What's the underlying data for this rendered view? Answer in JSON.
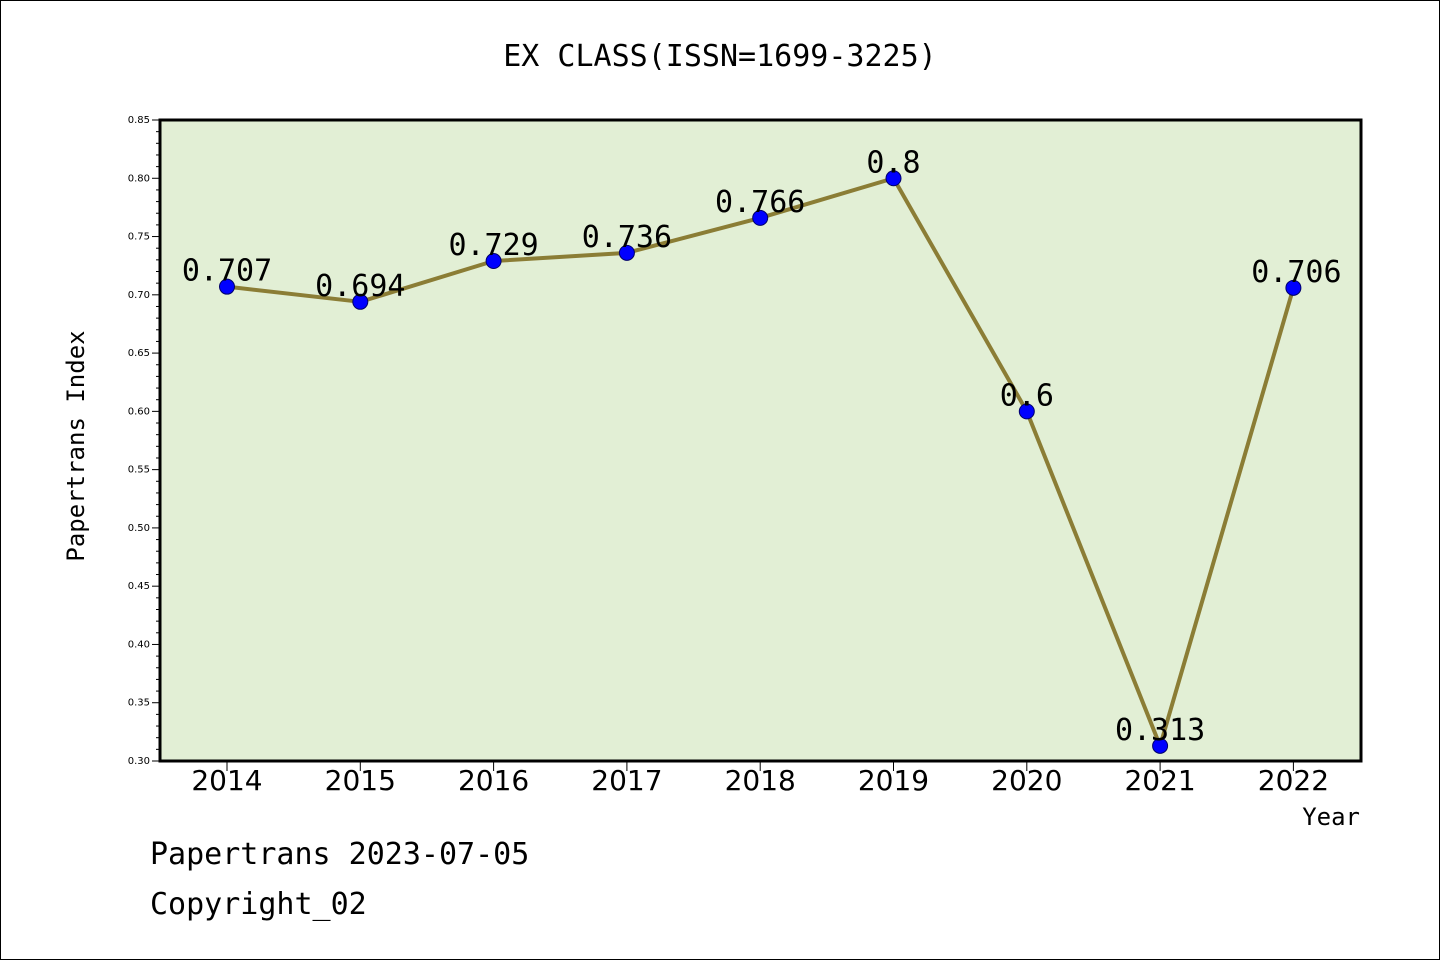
{
  "chart_data": {
    "type": "line",
    "title": "EX CLASS(ISSN=1699-3225)",
    "xlabel": "Year",
    "ylabel": "Papertrans Index",
    "categories": [
      "2014",
      "2015",
      "2016",
      "2017",
      "2018",
      "2019",
      "2020",
      "2021",
      "2022"
    ],
    "series": [
      {
        "values": [
          0.707,
          0.694,
          0.729,
          0.736,
          0.766,
          0.8,
          0.6,
          0.313,
          0.706
        ]
      }
    ],
    "data_labels": [
      "0.707",
      "0.694",
      "0.729",
      "0.736",
      "0.766",
      "0.8",
      "0.6",
      "0.313",
      "0.706"
    ],
    "ylim": [
      0.3,
      0.85
    ],
    "yticks": [
      "0.30",
      "0.35",
      "0.40",
      "0.45",
      "0.50",
      "0.55",
      "0.60",
      "0.65",
      "0.70",
      "0.75",
      "0.80",
      "0.85"
    ],
    "grid": false,
    "colors": {
      "plot_bg": "#e2efd5",
      "line": "#8b7d35",
      "marker": "#0000ff"
    }
  },
  "footer": {
    "line1": "Papertrans 2023-07-05",
    "line2": "Copyright_02"
  }
}
